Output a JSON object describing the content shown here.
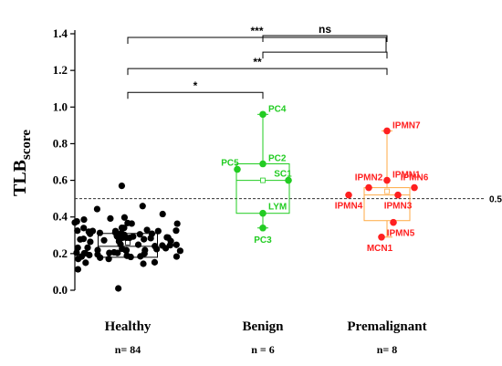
{
  "chart_data": {
    "type": "scatter",
    "ylabel_main": "TLB",
    "ylabel_sub": "score",
    "ylim": [
      0,
      1.4
    ],
    "yticks": [
      "0.0",
      "0.2",
      "0.4",
      "0.6",
      "0.8",
      "1.0",
      "1.2",
      "1.4"
    ],
    "threshold": {
      "value": 0.5,
      "label": "0.5"
    },
    "groups": [
      {
        "name": "Healthy",
        "n_label": "n= 84",
        "color": "#000000",
        "box": {
          "q1": 0.18,
          "median": 0.24,
          "q3": 0.31,
          "mean": 0.26
        },
        "count": 84,
        "range": [
          0.01,
          0.57
        ],
        "points": []
      },
      {
        "name": "Benign",
        "n_label": "n = 6",
        "color": "#22cc22",
        "box": {
          "q1": 0.42,
          "median": 0.6,
          "q3": 0.69,
          "mean": 0.6,
          "whisker_low": 0.34,
          "whisker_high": 0.96
        },
        "points": [
          {
            "label": "PC4",
            "value": 0.96,
            "offset": 0
          },
          {
            "label": "PC5",
            "value": 0.66,
            "offset": -0.28
          },
          {
            "label": "PC2",
            "value": 0.69,
            "offset": 0
          },
          {
            "label": "SC1",
            "value": 0.6,
            "offset": 0.28
          },
          {
            "label": "LYM",
            "value": 0.42,
            "offset": 0
          },
          {
            "label": "PC3",
            "value": 0.34,
            "offset": 0
          }
        ]
      },
      {
        "name": "Premalignant",
        "n_label": "n= 8",
        "color": "#ff2020",
        "box_color": "#ffaa44",
        "box": {
          "q1": 0.38,
          "median": 0.52,
          "q3": 0.56,
          "mean": 0.54,
          "whisker_low": 0.29,
          "whisker_high": 0.87
        },
        "points": [
          {
            "label": "IPMN7",
            "value": 0.87,
            "offset": 0
          },
          {
            "label": "IPMN1",
            "value": 0.6,
            "offset": 0
          },
          {
            "label": "IPMN2",
            "value": 0.56,
            "offset": -0.2
          },
          {
            "label": "IPMN6",
            "value": 0.56,
            "offset": 0.3
          },
          {
            "label": "IPMN3",
            "value": 0.52,
            "offset": 0.12
          },
          {
            "label": "IPMN4",
            "value": 0.52,
            "offset": -0.42
          },
          {
            "label": "IPMN5",
            "value": 0.37,
            "offset": 0.07
          },
          {
            "label": "MCN1",
            "value": 0.29,
            "offset": -0.06
          }
        ]
      }
    ],
    "significance": [
      {
        "from": "Healthy",
        "to": "Benign",
        "label": "*",
        "y": 1.08
      },
      {
        "from": "Healthy",
        "to": "Premalignant",
        "label": "**",
        "y": 1.21
      },
      {
        "from": "Healthy",
        "to": "Benign+Premalignant",
        "label": "***",
        "y": 1.38
      },
      {
        "from": "Benign",
        "to": "Premalignant",
        "label": "ns",
        "y": 1.48
      }
    ]
  }
}
